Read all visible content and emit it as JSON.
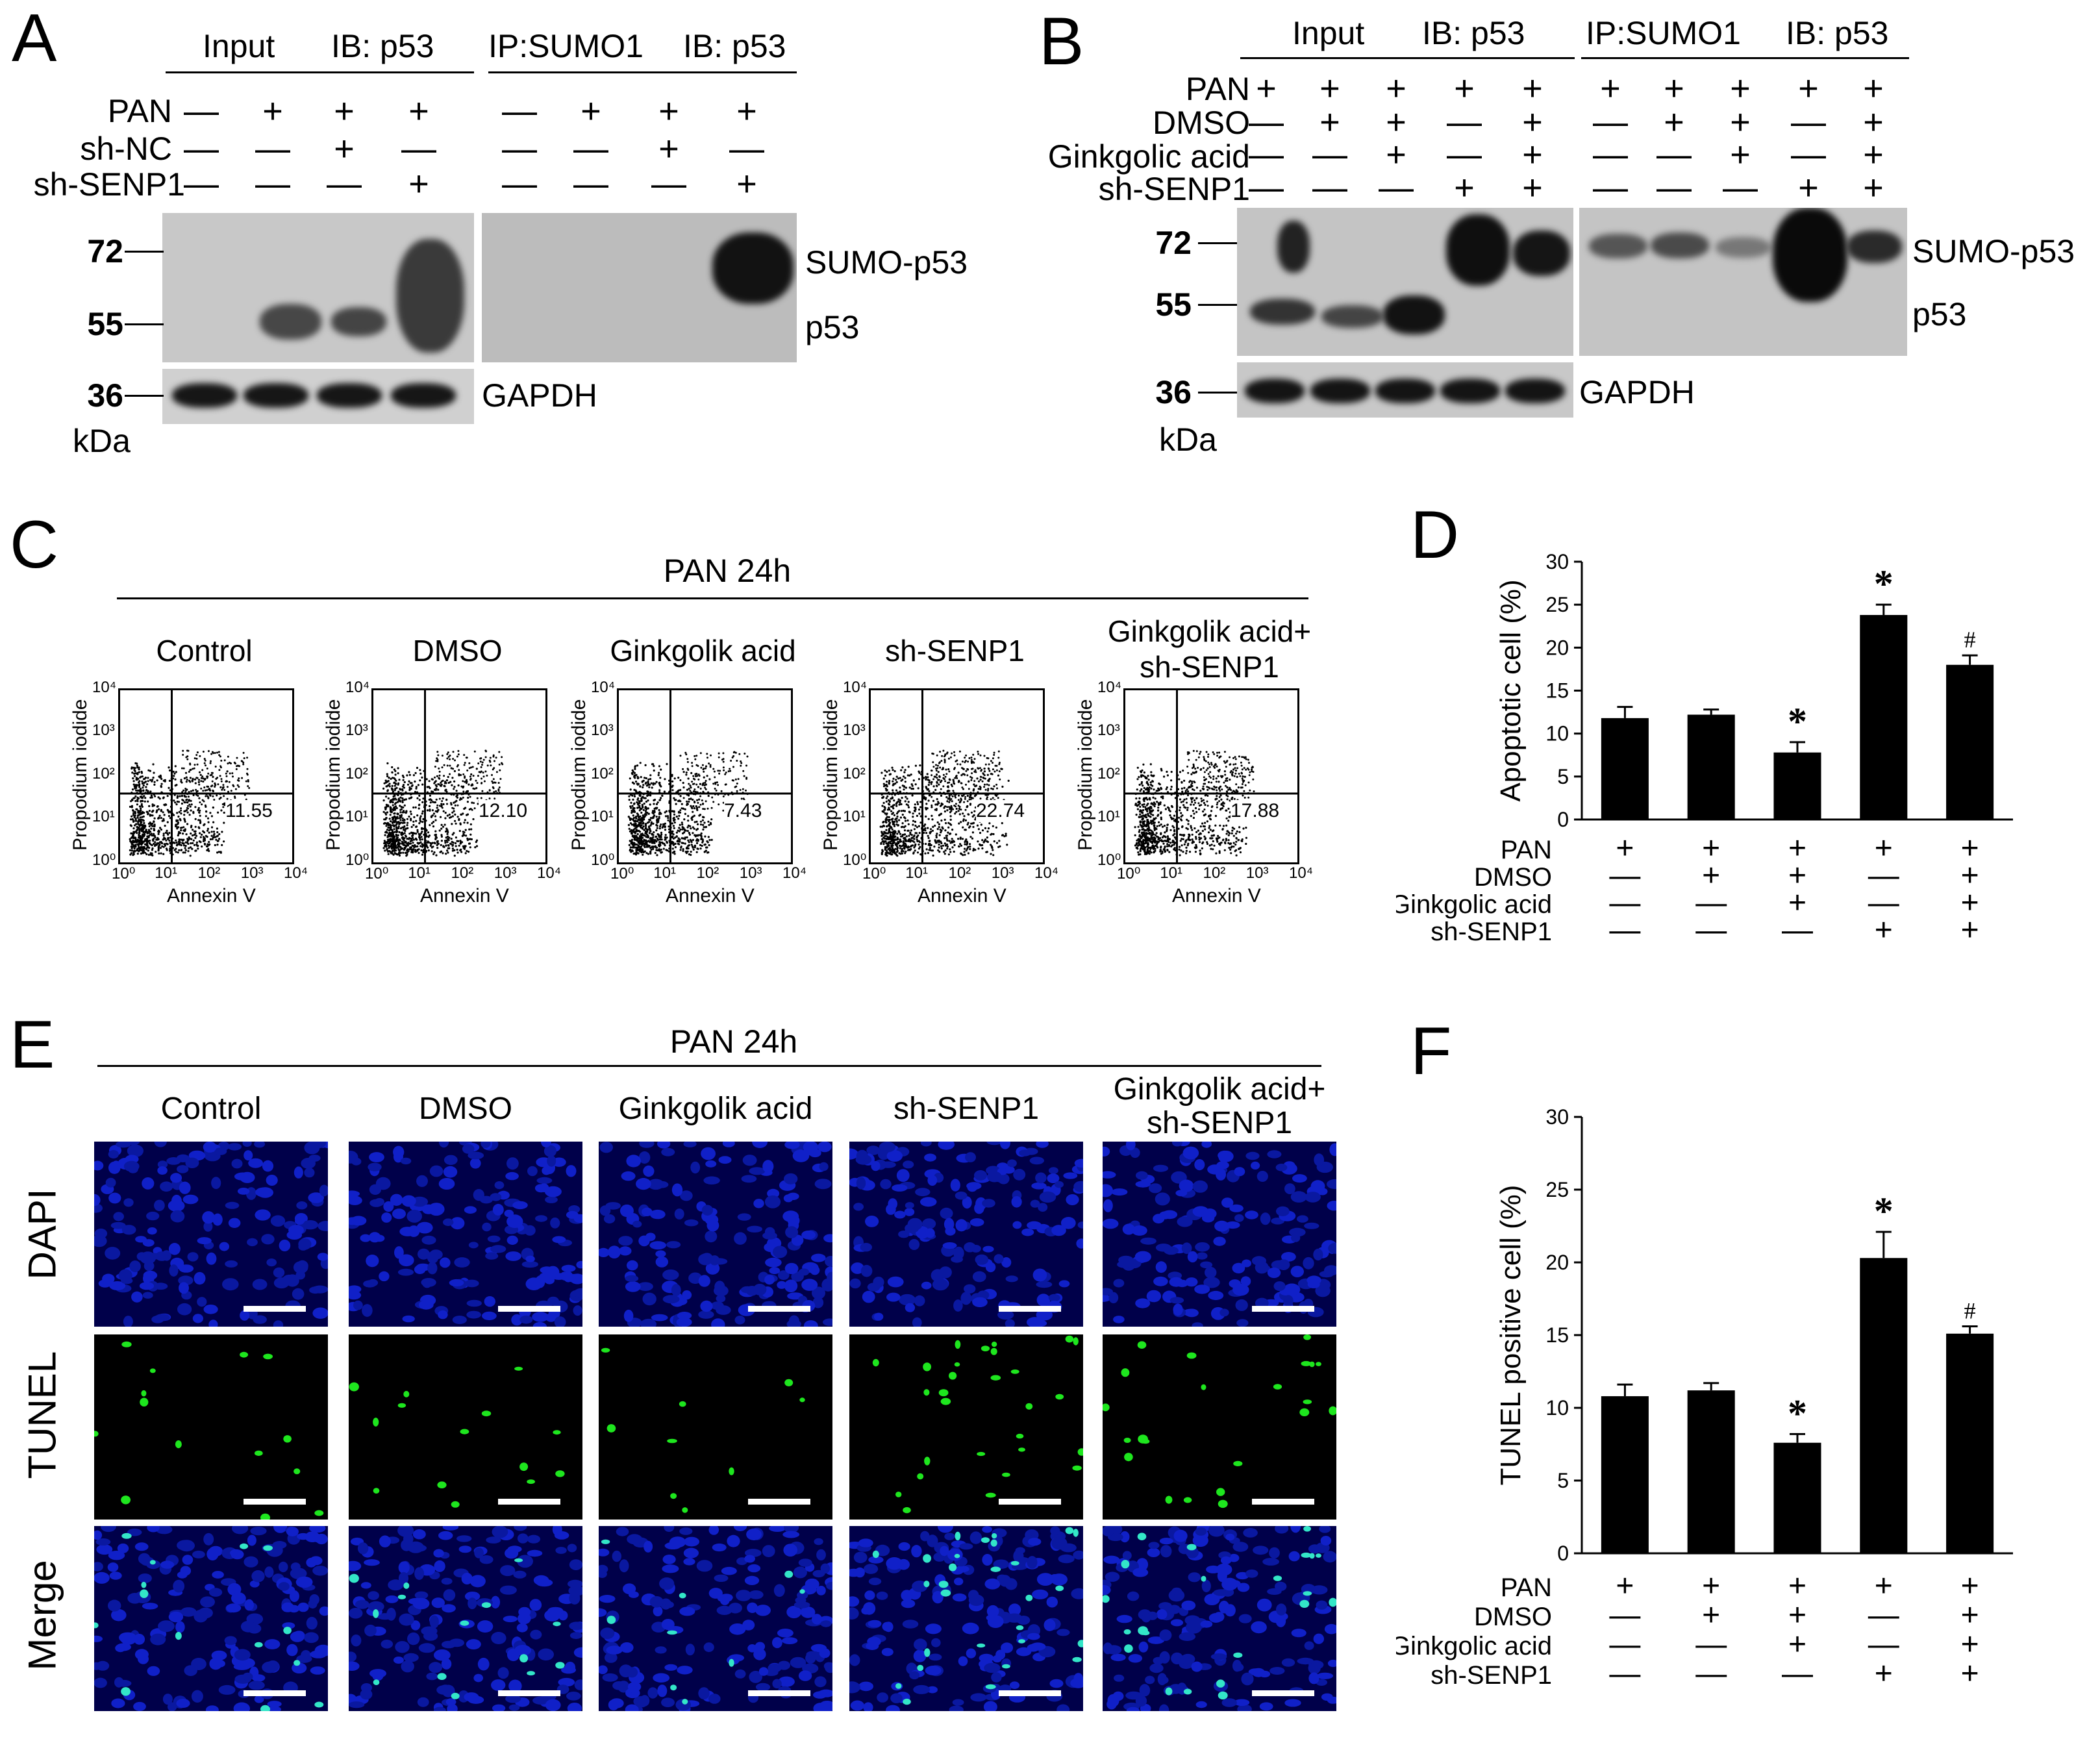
{
  "panel_labels": [
    "A",
    "B",
    "C",
    "D",
    "E",
    "F"
  ],
  "panelA": {
    "header_input": "Input",
    "header_ib1": "IB: p53",
    "header_ip": "IP:SUMO1",
    "header_ib2": "IB: p53",
    "row_labels": [
      "PAN",
      "sh-NC",
      "sh-SENP1"
    ],
    "signs": [
      [
        "—",
        "+",
        "+",
        "+",
        "—",
        "+",
        "+",
        "+"
      ],
      [
        "—",
        "—",
        "+",
        "—",
        "—",
        "—",
        "+",
        "—"
      ],
      [
        "—",
        "—",
        "—",
        "+",
        "—",
        "—",
        "—",
        "+"
      ]
    ],
    "mw": [
      "72",
      "55",
      "36"
    ],
    "unit": "kDa",
    "band_labels": [
      "SUMO-p53",
      "p53",
      "GAPDH"
    ]
  },
  "panelB": {
    "header_input": "Input",
    "header_ib1": "IB: p53",
    "header_ip": "IP:SUMO1",
    "header_ib2": "IB: p53",
    "row_labels": [
      "PAN",
      "DMSO",
      "Ginkgolic acid",
      "sh-SENP1"
    ],
    "signs": [
      [
        "+",
        "+",
        "+",
        "+",
        "+",
        "+",
        "+",
        "+",
        "+",
        "+"
      ],
      [
        "—",
        "+",
        "+",
        "—",
        "+",
        "—",
        "+",
        "+",
        "—",
        "+"
      ],
      [
        "—",
        "—",
        "+",
        "—",
        "+",
        "—",
        "—",
        "+",
        "—",
        "+"
      ],
      [
        "—",
        "—",
        "—",
        "+",
        "+",
        "—",
        "—",
        "—",
        "+",
        "+"
      ]
    ],
    "mw": [
      "72",
      "55",
      "36"
    ],
    "unit": "kDa",
    "band_labels": [
      "SUMO-p53",
      "p53",
      "GAPDH"
    ]
  },
  "panelC": {
    "title": "PAN 24h",
    "groups": [
      "Control",
      "DMSO",
      "Ginkgolik acid",
      "sh-SENP1",
      "Ginkgolik acid+\nsh-SENP1"
    ],
    "values": [
      "11.55",
      "12.10",
      "7.43",
      "22.74",
      "17.88"
    ],
    "ylabel": "Propodium iodide",
    "xlabel": "Annexin V",
    "ticks": [
      "10⁰",
      "10¹",
      "10²",
      "10³",
      "10⁴"
    ]
  },
  "panelE": {
    "title": "PAN 24h",
    "groups": [
      "Control",
      "DMSO",
      "Ginkgolik acid",
      "sh-SENP1",
      "Ginkgolik acid+\nsh-SENP1"
    ],
    "rows": [
      "DAPI",
      "TUNEL",
      "Merge"
    ]
  },
  "treatment_rows": [
    "PAN",
    "DMSO",
    "Ginkgolic acid",
    "sh-SENP1"
  ],
  "treatment_signs": [
    [
      "+",
      "+",
      "+",
      "+",
      "+"
    ],
    [
      "—",
      "+",
      "+",
      "—",
      "+"
    ],
    [
      "—",
      "—",
      "+",
      "—",
      "+"
    ],
    [
      "—",
      "—",
      "—",
      "+",
      "+"
    ]
  ],
  "chart_data": [
    {
      "type": "bar",
      "panel": "D",
      "ylabel": "Apoptotic cell (%)",
      "ylim": [
        0,
        30
      ],
      "yticks": [
        "0",
        "5",
        "10",
        "15",
        "20",
        "25",
        "30"
      ],
      "values": [
        11.8,
        12.2,
        7.8,
        23.8,
        18.0
      ],
      "errors": [
        1.3,
        0.6,
        1.2,
        1.2,
        1.1
      ],
      "annotations": [
        "",
        "",
        "*",
        "*",
        "#"
      ]
    },
    {
      "type": "bar",
      "panel": "F",
      "ylabel": "TUNEL positive cell (%)",
      "ylim": [
        0,
        30
      ],
      "yticks": [
        "0",
        "5",
        "10",
        "15",
        "20",
        "25",
        "30"
      ],
      "values": [
        10.8,
        11.2,
        7.6,
        20.3,
        15.1
      ],
      "errors": [
        0.8,
        0.5,
        0.6,
        1.8,
        0.5
      ],
      "annotations": [
        "",
        "",
        "*",
        "*",
        "#"
      ]
    }
  ],
  "colors": {
    "dapi": "#0a14c8",
    "tunel": "#1ee61e",
    "blot_bg": "#c8c8c8",
    "bar": "#000000"
  }
}
